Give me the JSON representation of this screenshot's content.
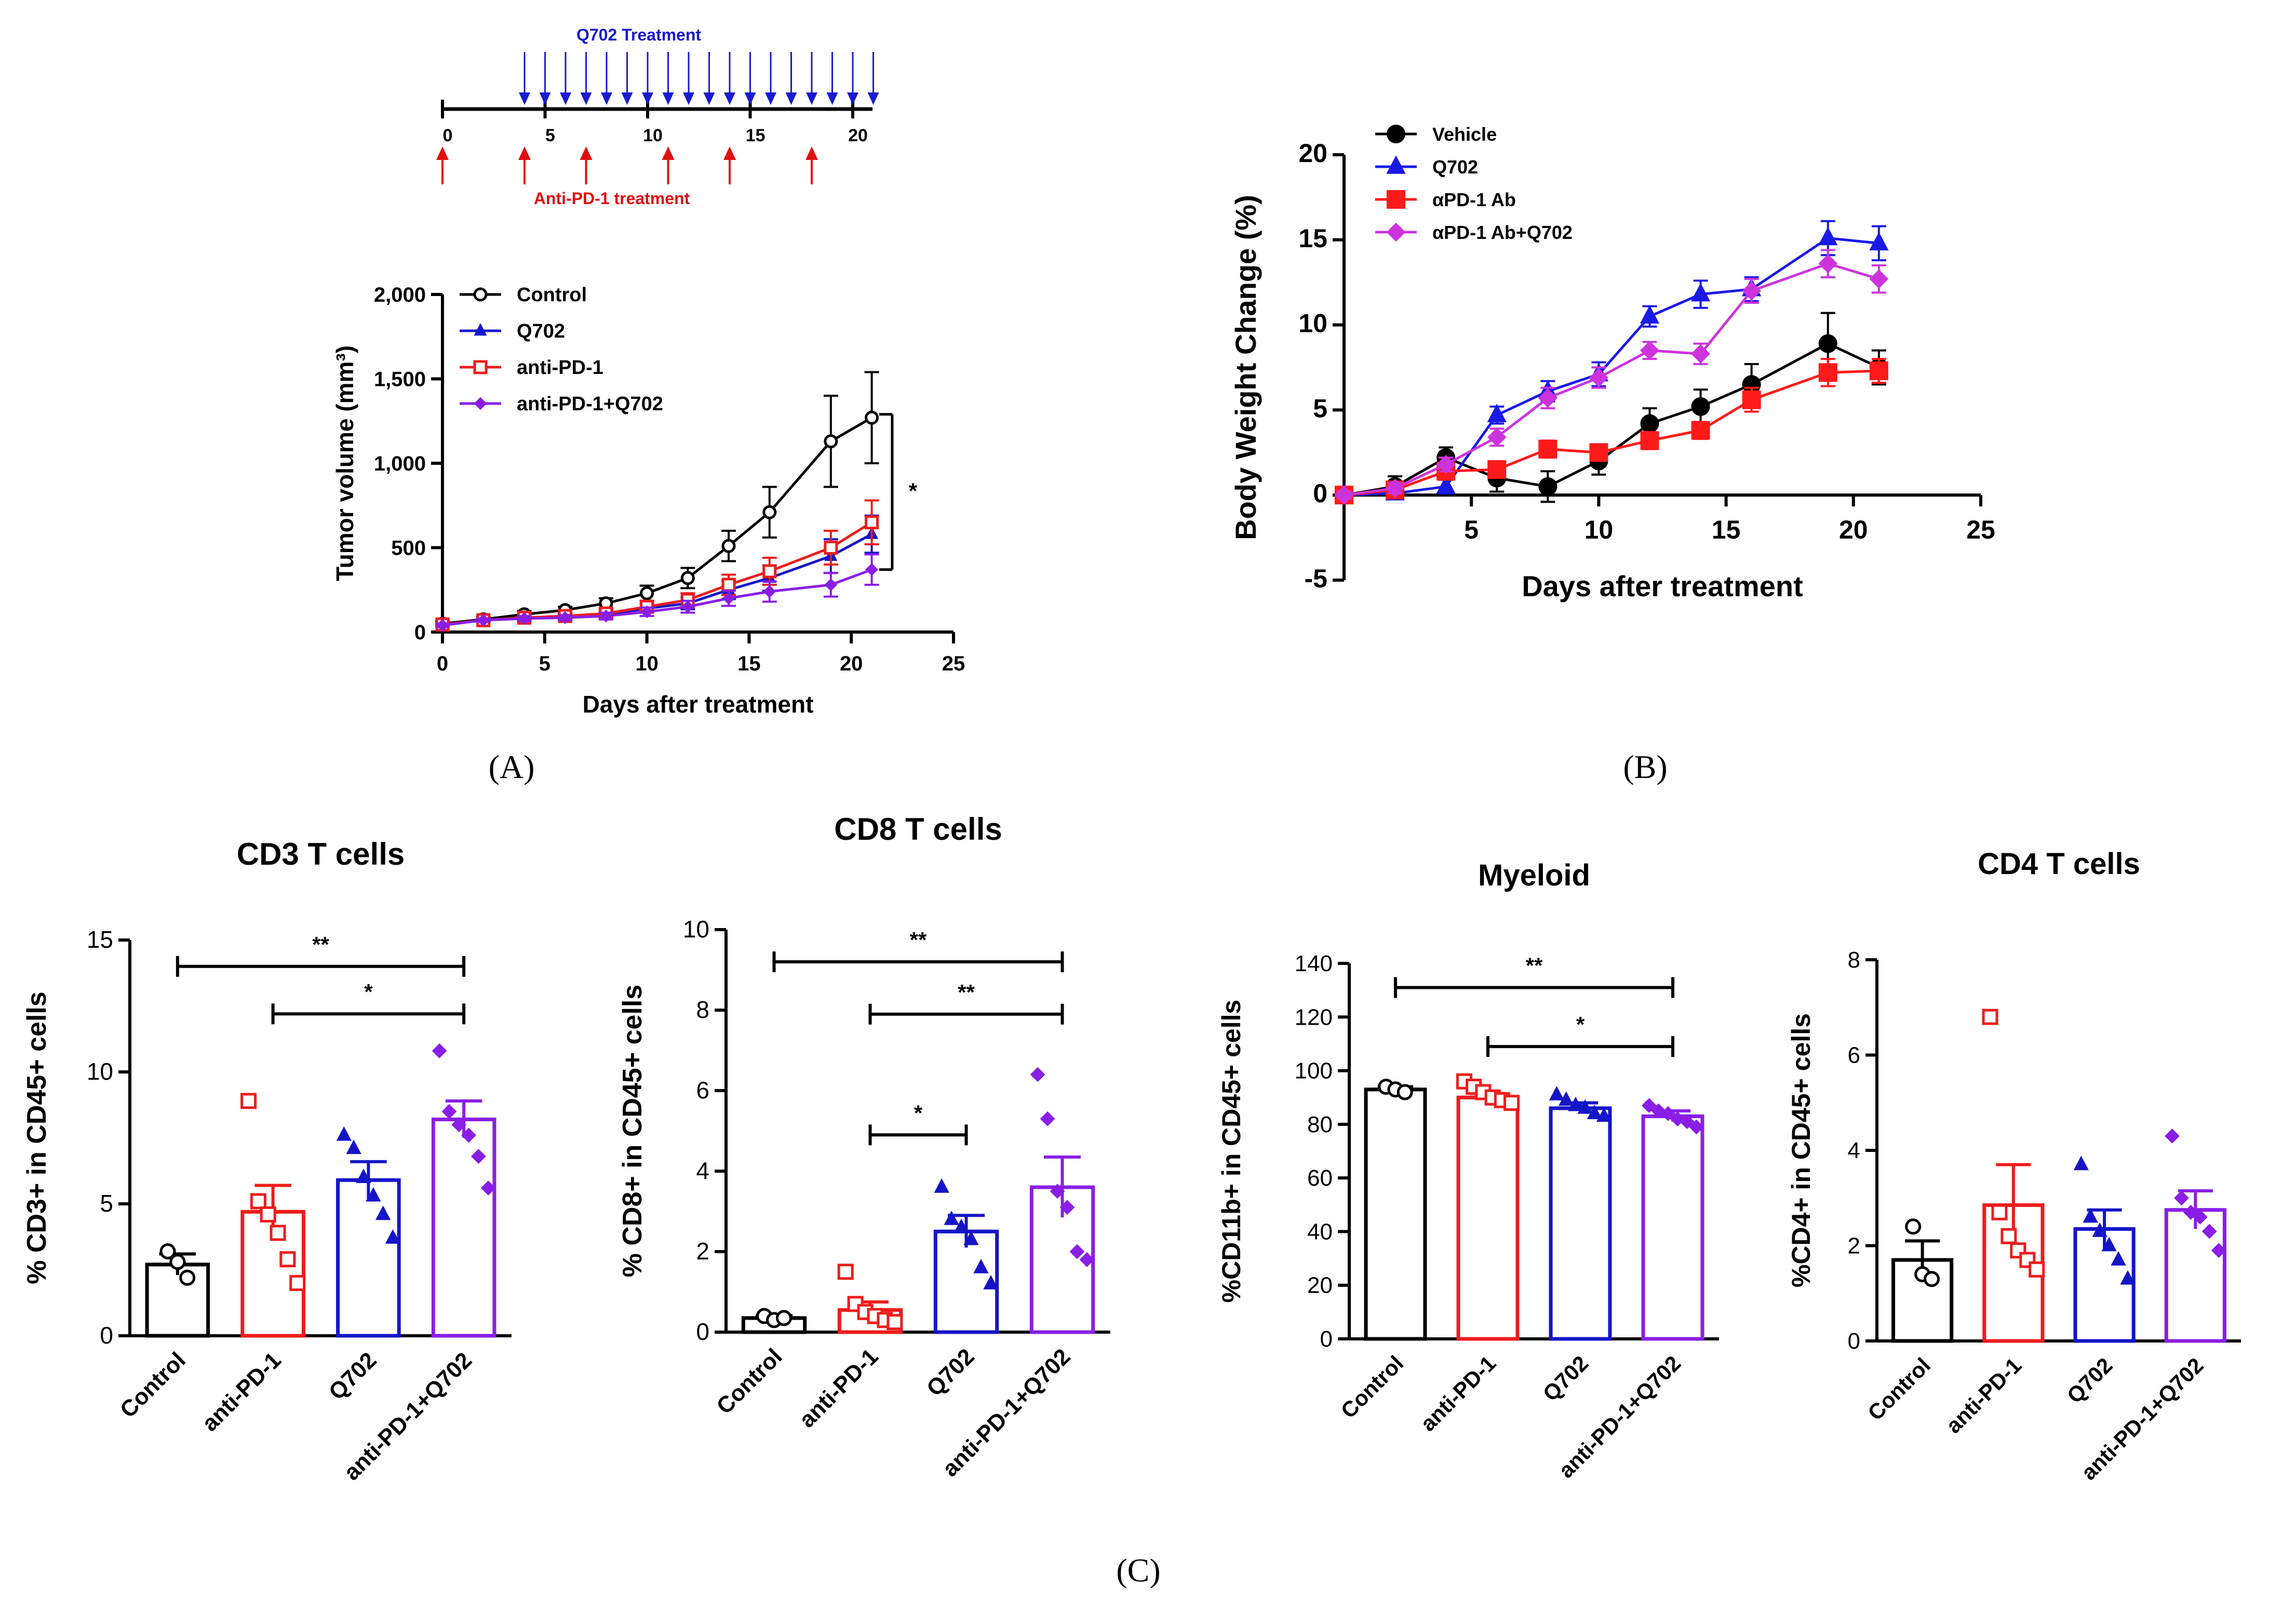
{
  "panel_labels": {
    "a": "(A)",
    "b": "(B)",
    "c": "(C)"
  },
  "colors": {
    "control": "#000000",
    "q702": "#1515c8",
    "antipd1": "#ee1c1c",
    "combo": "#8a1ee6",
    "vehicle": "#000000",
    "q702_b": "#1a1ae6",
    "apd1_b": "#ff1a1a",
    "combo_b": "#cc33dd",
    "timeline_top": "#1a1ad0",
    "timeline_bottom": "#e01010"
  },
  "schedule": {
    "top_label": "Q702 Treatment",
    "bottom_label": "Anti-PD-1 treatment",
    "ticks": [
      "0",
      "5",
      "10",
      "15",
      "20"
    ],
    "q702_days": [
      4,
      5,
      6,
      7,
      8,
      9,
      10,
      11,
      12,
      13,
      14,
      15,
      16,
      17,
      18,
      19,
      20,
      21
    ],
    "pd1_days": [
      0,
      4,
      7,
      11,
      14,
      18
    ]
  },
  "chart_data": [
    {
      "id": "A",
      "type": "line",
      "title": "",
      "xlabel": "Days after treatment",
      "ylabel": "Tumor volume (mm³)",
      "xlim": [
        0,
        25
      ],
      "ylim": [
        0,
        2000
      ],
      "xticks": [
        0,
        5,
        10,
        15,
        20,
        25
      ],
      "yticks": [
        0,
        500,
        1000,
        1500,
        2000
      ],
      "ytick_labels": [
        "0",
        "500",
        "1,000",
        "1,500",
        "2,000"
      ],
      "x": [
        0,
        2,
        4,
        6,
        8,
        10,
        12,
        14,
        16,
        19,
        21
      ],
      "series": [
        {
          "name": "Control",
          "marker": "circle-open",
          "color": "#000000",
          "values": [
            50,
            75,
            105,
            130,
            170,
            230,
            320,
            510,
            710,
            1130,
            1270
          ],
          "errors": [
            15,
            15,
            20,
            20,
            30,
            45,
            60,
            90,
            150,
            270,
            270
          ]
        },
        {
          "name": "Q702",
          "marker": "triangle",
          "color": "#1515c8",
          "values": [
            45,
            70,
            85,
            90,
            100,
            140,
            170,
            250,
            320,
            450,
            580
          ],
          "errors": [
            10,
            10,
            15,
            15,
            20,
            25,
            35,
            55,
            75,
            100,
            110
          ]
        },
        {
          "name": "anti-PD-1",
          "marker": "square-open",
          "color": "#ee1c1c",
          "values": [
            45,
            70,
            85,
            95,
            110,
            150,
            190,
            280,
            360,
            500,
            650
          ],
          "errors": [
            10,
            10,
            15,
            15,
            20,
            30,
            40,
            60,
            80,
            100,
            130
          ]
        },
        {
          "name": "anti-PD-1+Q702",
          "marker": "diamond",
          "color": "#8a1ee6",
          "values": [
            40,
            70,
            80,
            85,
            95,
            120,
            150,
            200,
            240,
            280,
            370
          ],
          "errors": [
            10,
            10,
            15,
            15,
            20,
            25,
            35,
            45,
            60,
            70,
            90
          ]
        }
      ],
      "annotations": [
        {
          "text": "*",
          "between": "Control vs anti-PD-1+Q702",
          "x_day": 22,
          "y_range": [
            370,
            1290
          ]
        }
      ]
    },
    {
      "id": "B",
      "type": "line",
      "title": "",
      "xlabel": "Days after treatment",
      "ylabel": "Body Weight Change (%)",
      "xlim": [
        0,
        25
      ],
      "ylim": [
        -5,
        20
      ],
      "xticks": [
        5,
        10,
        15,
        20,
        25
      ],
      "yticks": [
        -5,
        0,
        5,
        10,
        15,
        20
      ],
      "x": [
        0,
        2,
        4,
        6,
        8,
        10,
        12,
        14,
        16,
        19,
        21
      ],
      "series": [
        {
          "name": "Vehicle",
          "marker": "circle",
          "color": "#000000",
          "values": [
            0,
            0.5,
            2.2,
            1.0,
            0.5,
            2.0,
            4.2,
            5.2,
            6.5,
            8.9,
            7.5
          ],
          "errors": [
            0.2,
            0.6,
            0.6,
            0.8,
            0.9,
            0.8,
            0.9,
            1.0,
            1.2,
            1.8,
            1.0
          ]
        },
        {
          "name": "Q702",
          "marker": "triangle",
          "color": "#1a1ae6",
          "values": [
            0,
            0.1,
            0.5,
            4.7,
            6.1,
            7.1,
            10.5,
            11.8,
            12.1,
            15.1,
            14.8
          ],
          "errors": [
            0.2,
            0.3,
            0.4,
            0.5,
            0.6,
            0.7,
            0.6,
            0.8,
            0.7,
            1.0,
            1.0
          ]
        },
        {
          "name": "αPD-1 Ab",
          "marker": "square",
          "color": "#ff1a1a",
          "values": [
            0,
            0.3,
            1.4,
            1.5,
            2.7,
            2.5,
            3.2,
            3.8,
            5.6,
            7.2,
            7.3
          ],
          "errors": [
            0.2,
            0.3,
            0.4,
            0.4,
            0.5,
            0.4,
            0.5,
            0.5,
            0.7,
            0.8,
            0.7
          ]
        },
        {
          "name": "αPD-1 Ab+Q702",
          "marker": "diamond",
          "color": "#cc33dd",
          "values": [
            0,
            0.4,
            1.8,
            3.4,
            5.7,
            6.9,
            8.5,
            8.3,
            12.0,
            13.6,
            12.7
          ],
          "errors": [
            0.2,
            0.3,
            0.4,
            0.5,
            0.6,
            0.6,
            0.5,
            0.6,
            0.7,
            0.8,
            0.8
          ]
        }
      ]
    },
    {
      "id": "C1",
      "type": "bar",
      "title": "CD3 T cells",
      "ylabel": "% CD3+ in CD45+ cells",
      "xlabel": "",
      "ylim": [
        0,
        15
      ],
      "yticks": [
        0,
        5,
        10,
        15
      ],
      "categories": [
        "Control",
        "anti-PD-1",
        "Q702",
        "anti-PD-1+Q702"
      ],
      "values": [
        2.7,
        4.7,
        5.9,
        8.2
      ],
      "errors": [
        0.4,
        1.0,
        0.7,
        0.7
      ],
      "points": [
        [
          3.2,
          2.8,
          2.2
        ],
        [
          8.9,
          5.1,
          4.6,
          3.9,
          2.9,
          2.0
        ],
        [
          7.6,
          7.1,
          6.0,
          5.3,
          4.6,
          3.7
        ],
        [
          10.8,
          8.5,
          8.0,
          7.6,
          6.8,
          5.6
        ]
      ],
      "brackets": [
        {
          "from": 0,
          "to": 3,
          "text": "**",
          "y": 14
        },
        {
          "from": 1,
          "to": 3,
          "text": "*",
          "y": 12.2
        }
      ]
    },
    {
      "id": "C2",
      "type": "bar",
      "title": "CD8 T cells",
      "ylabel": "% CD8+ in CD45+ cells",
      "xlabel": "",
      "ylim": [
        0,
        10
      ],
      "yticks": [
        0,
        2,
        4,
        6,
        8,
        10
      ],
      "categories": [
        "Control",
        "anti-PD-1",
        "Q702",
        "anti-PD-1+Q702"
      ],
      "values": [
        0.35,
        0.55,
        2.5,
        3.6
      ],
      "errors": [
        0.06,
        0.2,
        0.4,
        0.75
      ],
      "points": [
        [
          0.4,
          0.3,
          0.35
        ],
        [
          1.5,
          0.7,
          0.5,
          0.4,
          0.3,
          0.25
        ],
        [
          3.6,
          2.8,
          2.6,
          2.3,
          1.6,
          1.2
        ],
        [
          6.4,
          5.3,
          3.5,
          3.1,
          2.0,
          1.8
        ]
      ],
      "brackets": [
        {
          "from": 0,
          "to": 3,
          "text": "**",
          "y": 9.2
        },
        {
          "from": 1,
          "to": 3,
          "text": "**",
          "y": 7.9
        },
        {
          "from": 1,
          "to": 2,
          "text": "*",
          "y": 4.9
        }
      ]
    },
    {
      "id": "C3",
      "type": "bar",
      "title": "Myeloid",
      "ylabel": "%CD11b+ in CD45+ cells",
      "xlabel": "",
      "ylim": [
        0,
        140
      ],
      "yticks": [
        0,
        20,
        40,
        60,
        80,
        100,
        120,
        140
      ],
      "categories": [
        "Control",
        "anti-PD-1",
        "Q702",
        "anti-PD-1+Q702"
      ],
      "values": [
        93,
        90,
        86,
        83
      ],
      "errors": [
        1,
        1.5,
        2,
        2
      ],
      "points": [
        [
          94,
          93,
          92
        ],
        [
          96,
          94,
          92,
          90,
          89,
          88
        ],
        [
          91,
          89,
          87,
          86,
          84,
          83
        ],
        [
          87,
          85,
          84,
          82,
          81,
          79
        ]
      ],
      "brackets": [
        {
          "from": 0,
          "to": 3,
          "text": "**",
          "y": 131
        },
        {
          "from": 1,
          "to": 3,
          "text": "*",
          "y": 109
        }
      ]
    },
    {
      "id": "C4",
      "type": "bar",
      "title": "CD4 T cells",
      "ylabel": "%CD4+ in CD45+ cells",
      "xlabel": "",
      "ylim": [
        0,
        8
      ],
      "yticks": [
        0,
        2,
        4,
        6,
        8
      ],
      "categories": [
        "Control",
        "anti-PD-1",
        "Q702",
        "anti-PD-1+Q702"
      ],
      "values": [
        1.7,
        2.85,
        2.35,
        2.75
      ],
      "errors": [
        0.4,
        0.85,
        0.4,
        0.4
      ],
      "points": [
        [
          2.4,
          1.4,
          1.3
        ],
        [
          6.8,
          2.7,
          2.2,
          1.9,
          1.7,
          1.5
        ],
        [
          3.7,
          2.6,
          2.3,
          2.0,
          1.7,
          1.3
        ],
        [
          4.3,
          3.0,
          2.7,
          2.6,
          2.3,
          1.9
        ]
      ],
      "brackets": []
    }
  ]
}
